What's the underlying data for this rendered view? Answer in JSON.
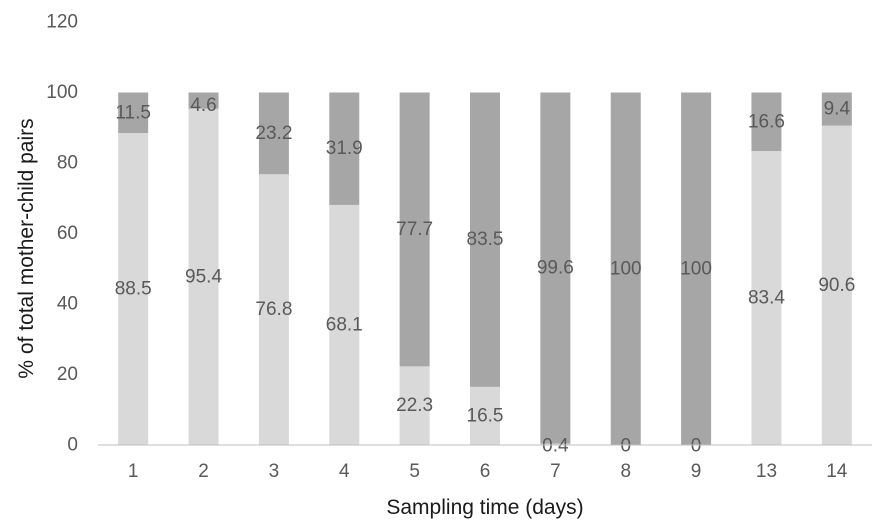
{
  "chart_data": {
    "type": "bar",
    "stacked": true,
    "categories": [
      "1",
      "2",
      "3",
      "4",
      "5",
      "6",
      "7",
      "8",
      "9",
      "13",
      "14"
    ],
    "series": [
      {
        "values": [
          88.5,
          95.4,
          76.8,
          68.1,
          22.3,
          16.5,
          0.4,
          0,
          0,
          83.4,
          90.6
        ],
        "color": "#d9d9d9"
      },
      {
        "values": [
          11.5,
          4.6,
          23.2,
          31.9,
          77.7,
          83.5,
          99.6,
          100,
          100,
          16.6,
          9.4
        ],
        "color": "#a6a6a7"
      }
    ],
    "xlabel": "Sampling time (days)",
    "ylabel": "% of total mother-child pairs",
    "ylim": [
      0,
      120
    ],
    "yticks": [
      "0",
      "20",
      "40",
      "60",
      "80",
      "100",
      "120"
    ],
    "grid": false,
    "legend": "none"
  }
}
